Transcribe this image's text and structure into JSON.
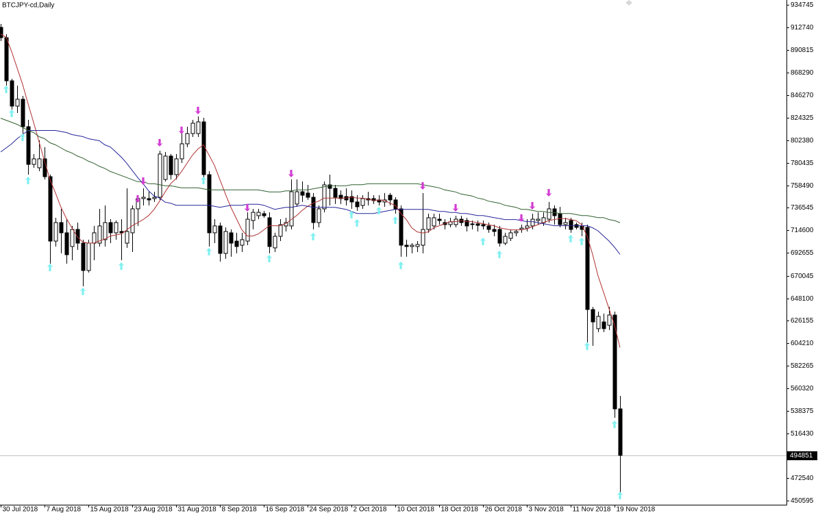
{
  "chart_data": {
    "type": "candlestick",
    "title": "BTCJPY-cd,Daily",
    "categories": [
      "30 Jul 2018",
      null,
      null,
      null,
      null,
      null,
      null,
      null,
      "7 Aug 2018",
      null,
      null,
      null,
      null,
      null,
      null,
      null,
      "15 Aug 2018",
      null,
      null,
      null,
      null,
      null,
      null,
      null,
      "23 Aug 2018",
      null,
      null,
      null,
      null,
      null,
      null,
      null,
      "31 Aug 2018",
      null,
      null,
      null,
      null,
      null,
      null,
      null,
      "8 Sep 2018",
      null,
      null,
      null,
      null,
      null,
      null,
      null,
      "16 Sep 2018",
      null,
      null,
      null,
      null,
      null,
      null,
      null,
      "24 Sep 2018",
      null,
      null,
      null,
      null,
      null,
      null,
      null,
      "2 Oct 2018",
      null,
      null,
      null,
      null,
      null,
      null,
      null,
      "10 Oct 2018",
      null,
      null,
      null,
      null,
      null,
      null,
      null,
      "18 Oct 2018",
      null,
      null,
      null,
      null,
      null,
      null,
      null,
      "26 Oct 2018",
      null,
      null,
      null,
      null,
      null,
      null,
      null,
      "3 Nov 2018",
      null,
      null,
      null,
      null,
      null,
      null,
      null,
      "11 Nov 2018",
      null,
      null,
      null,
      null,
      null,
      null,
      null,
      "19 Nov 2018",
      null
    ],
    "open": [
      912700,
      902600,
      860500,
      835800,
      842500,
      815700,
      778900,
      775600,
      784300,
      766900,
      704000,
      722100,
      712100,
      698700,
      715400,
      702000,
      675300,
      702000,
      702000,
      705400,
      722100,
      712100,
      713400,
      702000,
      712100,
      735500,
      745500,
      745500,
      745500,
      746800,
      764200,
      787000,
      768900,
      784300,
      799000,
      809000,
      809000,
      820400,
      768900,
      712100,
      718800,
      692000,
      712100,
      704000,
      700000,
      704000,
      724100,
      728800,
      730800,
      726800,
      697400,
      708700,
      718800,
      718800,
      740200,
      752200,
      750900,
      746800,
      722100,
      735500,
      758900,
      755500,
      748800,
      747500,
      747500,
      742200,
      738800,
      745500,
      745500,
      744200,
      742200,
      748800,
      744200,
      735500,
      700000,
      698700,
      698700,
      700000,
      715400,
      718800,
      725400,
      722100,
      720100,
      720100,
      725400,
      724100,
      720800,
      720800,
      720100,
      718800,
      715400,
      715400,
      702000,
      706700,
      712100,
      715400,
      716700,
      718800,
      724100,
      722100,
      725400,
      735500,
      730800,
      720100,
      724100,
      720100,
      718800,
      717400,
      637200,
      618500,
      625100,
      621800,
      631800,
      540200
    ],
    "high": [
      916000,
      906000,
      862500,
      855800,
      845800,
      822400,
      789000,
      802300,
      795700,
      768900,
      726800,
      735500,
      725400,
      718800,
      722100,
      705400,
      705400,
      718800,
      735500,
      738800,
      725400,
      724100,
      725400,
      755500,
      738800,
      748800,
      755500,
      752200,
      752200,
      792300,
      791000,
      789000,
      789000,
      809000,
      815700,
      822400,
      825700,
      824400,
      772300,
      725400,
      722100,
      717400,
      715400,
      712100,
      712100,
      732100,
      735500,
      735500,
      733500,
      732100,
      712100,
      725400,
      726800,
      764200,
      764200,
      762200,
      758900,
      750900,
      738800,
      762200,
      768900,
      758900,
      753500,
      755500,
      753500,
      748800,
      748800,
      752200,
      748800,
      748800,
      750900,
      750900,
      746800,
      738800,
      705400,
      702000,
      704000,
      750900,
      730800,
      730800,
      730800,
      725400,
      726800,
      728800,
      728800,
      726800,
      724100,
      724100,
      724100,
      722100,
      720100,
      718800,
      712100,
      715400,
      715400,
      720100,
      725400,
      730800,
      732100,
      732100,
      742200,
      738800,
      737500,
      726800,
      726800,
      722100,
      722100,
      720100,
      639800,
      635200,
      633200,
      639800,
      635200,
      552900
    ],
    "low": [
      899300,
      855800,
      832400,
      829100,
      809000,
      768900,
      775600,
      772300,
      764200,
      682000,
      698700,
      692000,
      682000,
      685300,
      695400,
      659900,
      673300,
      685300,
      698700,
      698700,
      702000,
      705400,
      685300,
      697400,
      693300,
      718800,
      738800,
      738800,
      742200,
      744200,
      762200,
      764200,
      764200,
      780300,
      795700,
      805700,
      805700,
      762200,
      698700,
      702000,
      684000,
      686700,
      688700,
      692000,
      693300,
      700000,
      715400,
      725400,
      726800,
      692000,
      693300,
      704000,
      713400,
      715400,
      737500,
      742200,
      744200,
      715400,
      717400,
      732100,
      738800,
      740200,
      740200,
      738800,
      735500,
      733500,
      735500,
      738800,
      740200,
      738800,
      737500,
      738800,
      730800,
      688700,
      688700,
      692000,
      693300,
      692000,
      712100,
      715400,
      720100,
      715400,
      717400,
      717400,
      718800,
      713400,
      715400,
      713400,
      715400,
      712100,
      708700,
      698700,
      700000,
      704000,
      708700,
      712100,
      713400,
      715400,
      720100,
      718800,
      722100,
      720100,
      717400,
      715400,
      712100,
      715400,
      708700,
      605100,
      601700,
      615100,
      615100,
      617100,
      531500,
      458000
    ],
    "close": [
      902600,
      860500,
      835800,
      842500,
      815700,
      778900,
      784300,
      784300,
      766900,
      704000,
      722100,
      712100,
      690700,
      715400,
      702000,
      675300,
      702000,
      712100,
      718800,
      722100,
      712100,
      722100,
      712100,
      713400,
      735500,
      745500,
      746800,
      744200,
      746800,
      789000,
      787000,
      768900,
      784300,
      799000,
      809000,
      819100,
      820400,
      768900,
      712100,
      718800,
      692000,
      713400,
      702000,
      698700,
      705400,
      725400,
      732100,
      732100,
      728800,
      698700,
      708700,
      720100,
      722100,
      752200,
      752200,
      748800,
      746800,
      722100,
      735500,
      758900,
      755500,
      746800,
      745500,
      744200,
      742200,
      737500,
      745500,
      744200,
      743500,
      742200,
      744200,
      744200,
      735500,
      700000,
      698700,
      700000,
      700700,
      715400,
      726800,
      726800,
      724100,
      720100,
      722800,
      725400,
      722100,
      718800,
      720100,
      719400,
      718800,
      715400,
      713400,
      702000,
      708700,
      712100,
      713400,
      716700,
      718800,
      725400,
      725400,
      726800,
      735500,
      728800,
      720100,
      722100,
      715400,
      717400,
      715400,
      637200,
      625100,
      630500,
      618500,
      631800,
      540200,
      494851
    ],
    "up_color": "#ffffff",
    "down_color": "#000000",
    "wick_color": "#000000",
    "series": [
      {
        "color": "#b03030",
        "values": [
          906000,
          903000,
          889000,
          873000,
          857000,
          838000,
          820000,
          801000,
          782000,
          764000,
          751000,
          737000,
          726000,
          717000,
          708000,
          703000,
          702000,
          702000,
          704000,
          706000,
          709000,
          710000,
          711000,
          715000,
          719000,
          722000,
          725000,
          729000,
          735000,
          743000,
          752000,
          760000,
          765000,
          772000,
          780000,
          788000,
          794000,
          798000,
          788000,
          778000,
          764000,
          750000,
          737000,
          726000,
          715000,
          709000,
          709000,
          711000,
          715000,
          719000,
          719000,
          719000,
          721000,
          725000,
          729000,
          734000,
          738000,
          741000,
          743000,
          746000,
          746000,
          746000,
          746000,
          746000,
          747000,
          746000,
          746000,
          745000,
          744000,
          744000,
          744000,
          741000,
          739000,
          731000,
          725000,
          717000,
          713000,
          712000,
          713000,
          717000,
          719000,
          721000,
          723000,
          723000,
          724000,
          723000,
          723000,
          722000,
          721000,
          720000,
          719000,
          717000,
          716000,
          715000,
          715000,
          715000,
          716000,
          718000,
          720000,
          722000,
          724000,
          725000,
          726000,
          726000,
          725000,
          724000,
          720000,
          709000,
          691000,
          670000,
          654000,
          638000,
          622000,
          600000
        ]
      },
      {
        "color": "#24249a",
        "values": [
          791000,
          795000,
          799000,
          804000,
          808000,
          812000,
          812000,
          812000,
          812000,
          812000,
          812000,
          811000,
          810000,
          808000,
          807000,
          806000,
          804000,
          803000,
          802000,
          798000,
          796000,
          791000,
          786000,
          780000,
          773000,
          766000,
          760000,
          753000,
          748000,
          746000,
          742000,
          741000,
          739000,
          739000,
          739000,
          739000,
          739000,
          739000,
          739000,
          738000,
          737000,
          738000,
          739000,
          739000,
          739000,
          740000,
          740000,
          740000,
          739000,
          737000,
          735000,
          736000,
          737000,
          737000,
          738000,
          739000,
          738000,
          737000,
          737000,
          737000,
          737000,
          737000,
          736000,
          735000,
          733000,
          731000,
          731000,
          731000,
          731000,
          732000,
          733000,
          734000,
          735000,
          735000,
          735000,
          735000,
          735000,
          735000,
          735000,
          734000,
          733000,
          733000,
          732000,
          732000,
          731000,
          731000,
          730000,
          729000,
          729000,
          728000,
          727000,
          726000,
          725000,
          725000,
          725000,
          724000,
          723000,
          723000,
          722000,
          721000,
          720000,
          719000,
          719000,
          719000,
          719000,
          719000,
          719000,
          719000,
          717000,
          714000,
          709000,
          704000,
          698000,
          691000
        ]
      },
      {
        "color": "#2f5f2f",
        "values": [
          824000,
          822000,
          820000,
          818000,
          815000,
          812000,
          810000,
          806000,
          804000,
          800000,
          798000,
          795000,
          792000,
          790000,
          787000,
          785000,
          782000,
          780000,
          777000,
          775000,
          772000,
          770000,
          768000,
          766000,
          764000,
          762000,
          762000,
          760000,
          760000,
          759000,
          758000,
          758000,
          757000,
          756000,
          756000,
          756000,
          756000,
          755000,
          754000,
          754000,
          754000,
          754000,
          754000,
          754000,
          754000,
          754000,
          754000,
          754000,
          753000,
          752000,
          752000,
          752000,
          753000,
          753000,
          754000,
          754000,
          754000,
          755000,
          756000,
          757000,
          758000,
          758000,
          758000,
          758000,
          759000,
          759000,
          759000,
          760000,
          760000,
          760000,
          760000,
          760000,
          760000,
          760000,
          760000,
          760000,
          760000,
          759000,
          758000,
          757000,
          756000,
          754000,
          753000,
          752000,
          750000,
          749000,
          748000,
          746000,
          745000,
          743000,
          742000,
          741000,
          739000,
          738000,
          737000,
          735000,
          735000,
          734000,
          733000,
          733000,
          732000,
          732000,
          731000,
          731000,
          731000,
          730000,
          729000,
          729000,
          728000,
          727000,
          727000,
          725000,
          724000,
          722000
        ]
      }
    ],
    "up_arrows": {
      "color": "#7ff0f0",
      "values": [
        null,
        855800,
        832400,
        null,
        809000,
        766900,
        null,
        null,
        null,
        682000,
        null,
        null,
        null,
        null,
        null,
        658600,
        null,
        null,
        null,
        null,
        null,
        null,
        683300,
        null,
        null,
        null,
        null,
        null,
        null,
        null,
        null,
        null,
        null,
        null,
        null,
        null,
        null,
        766900,
        697400,
        null,
        null,
        null,
        null,
        null,
        null,
        null,
        null,
        null,
        null,
        690700,
        null,
        null,
        null,
        null,
        null,
        null,
        null,
        712100,
        null,
        null,
        null,
        null,
        null,
        null,
        733500,
        725400,
        null,
        null,
        null,
        737500,
        null,
        null,
        728100,
        684000,
        null,
        null,
        null,
        null,
        null,
        null,
        null,
        null,
        null,
        null,
        null,
        null,
        null,
        null,
        707400,
        null,
        null,
        694700,
        null,
        null,
        null,
        null,
        null,
        null,
        null,
        null,
        null,
        null,
        null,
        null,
        710100,
        null,
        707400,
        605100,
        null,
        null,
        null,
        null,
        528800,
        459300
      ]
    },
    "down_arrows": {
      "color": "#d23cd2",
      "values": [
        null,
        null,
        null,
        null,
        null,
        null,
        null,
        null,
        null,
        null,
        null,
        null,
        null,
        null,
        null,
        null,
        null,
        null,
        null,
        null,
        null,
        null,
        null,
        null,
        null,
        741500,
        758900,
        null,
        null,
        796300,
        null,
        null,
        null,
        808400,
        null,
        null,
        827800,
        null,
        null,
        null,
        null,
        null,
        null,
        null,
        null,
        732800,
        null,
        null,
        null,
        null,
        null,
        null,
        null,
        766200,
        null,
        null,
        null,
        null,
        null,
        null,
        null,
        null,
        null,
        null,
        null,
        null,
        null,
        null,
        null,
        null,
        null,
        null,
        null,
        null,
        null,
        null,
        null,
        754200,
        null,
        null,
        null,
        null,
        null,
        732800,
        null,
        null,
        null,
        null,
        null,
        null,
        null,
        null,
        null,
        null,
        null,
        722800,
        null,
        734800,
        null,
        null,
        747500,
        null,
        null,
        null,
        null,
        null,
        null,
        null,
        null,
        null,
        null,
        null,
        null,
        null
      ]
    },
    "current_price": 494851,
    "current_price_color": "#c0c0c0",
    "ylim": [
      446600,
      939400
    ],
    "yticks": [
      934745,
      912740,
      890815,
      868290,
      846270,
      824325,
      802380,
      780435,
      758490,
      736545,
      714600,
      692655,
      670045,
      648100,
      626155,
      604210,
      582265,
      560320,
      538375,
      516430,
      472540,
      450595
    ]
  }
}
